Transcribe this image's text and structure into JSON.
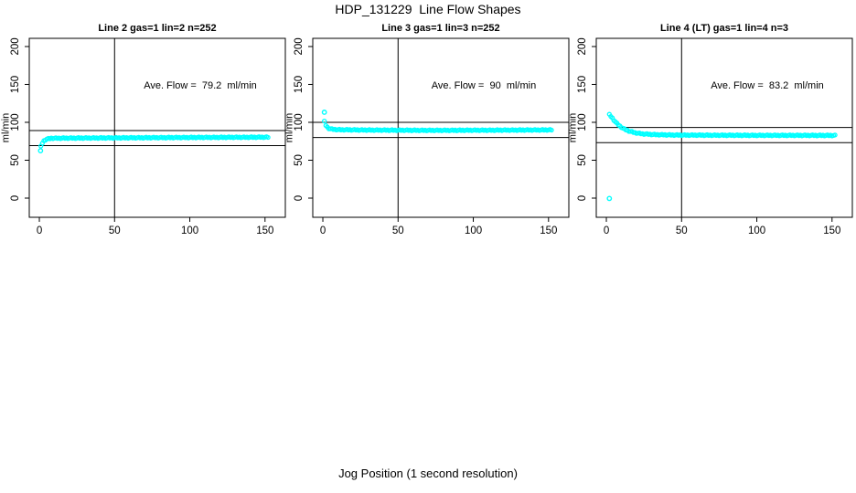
{
  "title": "HDP_131229  Line Flow Shapes",
  "xlabel": "Jog Position (1 second resolution)",
  "colors": {
    "points": "#00FFFF",
    "axis": "#000000",
    "background": "#FFFFFF"
  },
  "chart_data": [
    {
      "type": "scatter",
      "title": "Line 2 gas=1 lin=2 n=252",
      "annotation": "Ave. Flow =  79.2  ml/min",
      "ylabel": "ml/min",
      "ave_flow_ml_min": 79.2,
      "n": 252,
      "x_ticks": [
        0,
        50,
        100,
        150
      ],
      "y_ticks": [
        0,
        50,
        100,
        150,
        200
      ],
      "xlim": [
        -6.7,
        163.5
      ],
      "ylim": [
        -25.3,
        210.8
      ],
      "vline_x": 50,
      "ref_lines_y": [
        89.2,
        69.2
      ],
      "outlier_points": [
        [
          0.8,
          62.5
        ]
      ],
      "curve_keypoints": [
        [
          1,
          68
        ],
        [
          2,
          72.5
        ],
        [
          3,
          75.5
        ],
        [
          4,
          77
        ],
        [
          5,
          78
        ],
        [
          8,
          79
        ],
        [
          20,
          79.2
        ],
        [
          60,
          79.6
        ],
        [
          100,
          80
        ],
        [
          152,
          80.4
        ]
      ],
      "x_resolution": 1,
      "x_end": 152
    },
    {
      "type": "scatter",
      "title": "Line 3 gas=1 lin=3 n=252",
      "annotation": "Ave. Flow =  90  ml/min",
      "ylabel": "ml/min",
      "ave_flow_ml_min": 90,
      "n": 252,
      "x_ticks": [
        0,
        50,
        100,
        150
      ],
      "y_ticks": [
        0,
        50,
        100,
        150,
        200
      ],
      "xlim": [
        -6.7,
        163.5
      ],
      "ylim": [
        -25.3,
        210.8
      ],
      "vline_x": 50,
      "ref_lines_y": [
        100,
        80
      ],
      "outlier_points": [
        [
          1,
          113.3
        ]
      ],
      "curve_keypoints": [
        [
          1,
          101
        ],
        [
          2,
          96
        ],
        [
          3,
          93.5
        ],
        [
          4,
          92
        ],
        [
          6,
          91
        ],
        [
          10,
          90.3
        ],
        [
          30,
          89.8
        ],
        [
          70,
          89.4
        ],
        [
          110,
          89.6
        ],
        [
          152,
          90
        ]
      ],
      "x_resolution": 1,
      "x_end": 152
    },
    {
      "type": "scatter",
      "title": "Line 4 (LT) gas=1 lin=4 n=3",
      "annotation": "Ave. Flow =  83.2  ml/min",
      "ylabel": "ml/min",
      "ave_flow_ml_min": 83.2,
      "n": 3,
      "x_ticks": [
        0,
        50,
        100,
        150
      ],
      "y_ticks": [
        0,
        50,
        100,
        150,
        200
      ],
      "xlim": [
        -6.7,
        163.5
      ],
      "ylim": [
        -25.3,
        210.8
      ],
      "vline_x": 50,
      "ref_lines_y": [
        93.2,
        73.2
      ],
      "outlier_points": [
        [
          2,
          -0.5
        ]
      ],
      "curve_keypoints": [
        [
          2,
          110
        ],
        [
          3,
          108
        ],
        [
          5,
          103
        ],
        [
          7,
          98.5
        ],
        [
          9,
          95
        ],
        [
          12,
          91
        ],
        [
          15,
          88.5
        ],
        [
          19,
          86.3
        ],
        [
          24,
          84.8
        ],
        [
          32,
          83.8
        ],
        [
          45,
          83.2
        ],
        [
          80,
          82.9
        ],
        [
          152,
          82.7
        ]
      ],
      "x_resolution": 1,
      "x_end": 152
    }
  ]
}
